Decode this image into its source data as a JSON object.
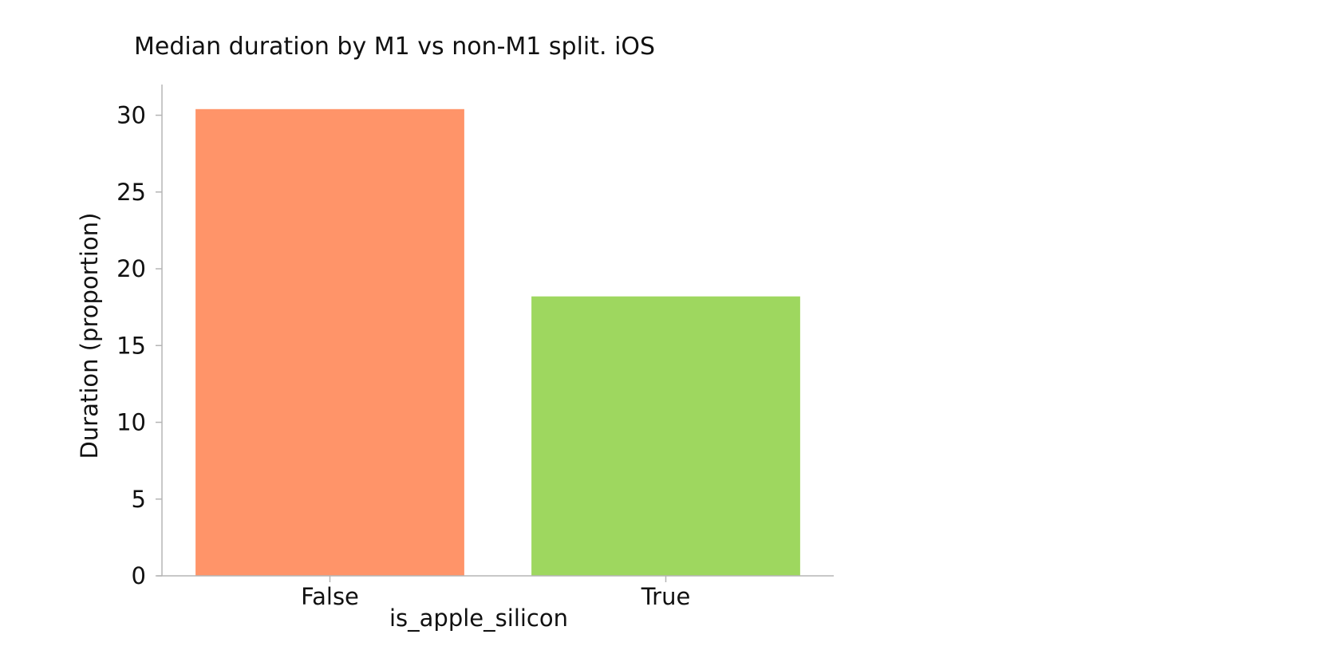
{
  "chart_data": {
    "type": "bar",
    "title": "Median duration by M1 vs non-M1 split. iOS",
    "xlabel": "is_apple_silicon",
    "ylabel": "Duration (proportion)",
    "categories": [
      "False",
      "True"
    ],
    "values": [
      30.4,
      18.2
    ],
    "colors": [
      "#ff9469",
      "#9ed75f"
    ],
    "ylim": [
      0,
      32
    ],
    "yticks": [
      0,
      5,
      10,
      15,
      20,
      25,
      30
    ],
    "grid": false,
    "axis_color": "#b5b5b5",
    "legend": "none"
  }
}
